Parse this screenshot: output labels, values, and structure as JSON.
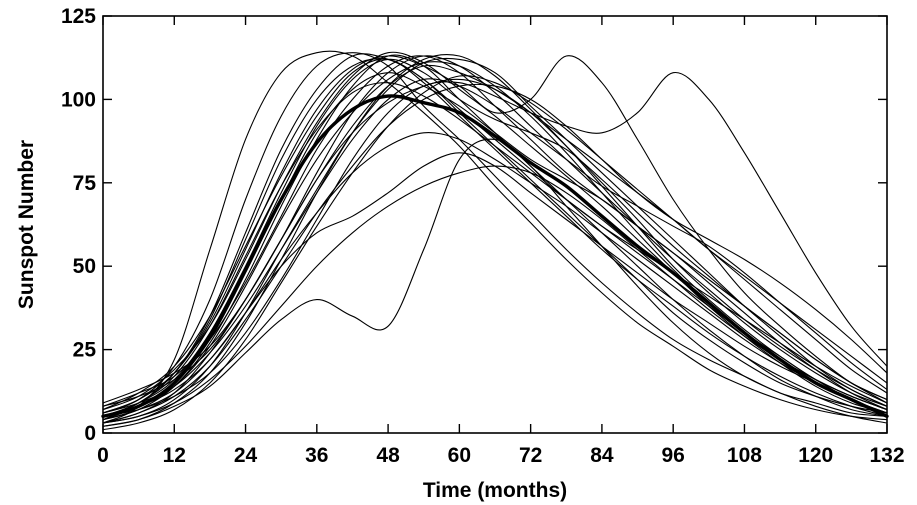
{
  "chart_data": {
    "type": "line",
    "xlabel": "Time (months)",
    "ylabel": "Sunspot Number",
    "xlim": [
      0,
      132
    ],
    "ylim": [
      0,
      125
    ],
    "xticks": [
      0,
      12,
      24,
      36,
      48,
      60,
      72,
      84,
      96,
      108,
      120,
      132
    ],
    "yticks": [
      0,
      25,
      50,
      75,
      100,
      125
    ],
    "grid": false,
    "legend": "none",
    "mean_series": {
      "style": "thick",
      "x": [
        0,
        6,
        12,
        18,
        24,
        30,
        36,
        42,
        48,
        54,
        60,
        66,
        72,
        78,
        84,
        90,
        96,
        102,
        108,
        114,
        120,
        126,
        132
      ],
      "y": [
        5,
        8,
        15,
        29,
        49,
        70,
        87,
        97,
        101,
        99,
        96,
        89,
        81,
        74,
        65,
        56,
        48,
        39,
        30,
        22,
        15,
        10,
        5
      ]
    },
    "series": [
      {
        "x": [
          0,
          6,
          12,
          18,
          24,
          30,
          36,
          42,
          48,
          54,
          60,
          66,
          72,
          78,
          84,
          90,
          96,
          102,
          108,
          114,
          120,
          126,
          132
        ],
        "y": [
          3,
          8,
          22,
          55,
          88,
          108,
          114,
          113,
          105,
          96,
          86,
          74,
          63,
          52,
          42,
          33,
          26,
          19,
          14,
          10,
          7,
          5,
          4
        ]
      },
      {
        "x": [
          0,
          6,
          12,
          18,
          24,
          30,
          36,
          42,
          48,
          54,
          60,
          66,
          72,
          78,
          84,
          90,
          96,
          102,
          108,
          114,
          120,
          126,
          132
        ],
        "y": [
          6,
          10,
          20,
          40,
          70,
          95,
          110,
          114,
          110,
          98,
          88,
          77,
          66,
          55,
          45,
          36,
          28,
          22,
          17,
          12,
          9,
          6,
          5
        ]
      },
      {
        "x": [
          0,
          6,
          12,
          18,
          24,
          30,
          36,
          42,
          48,
          54,
          60,
          66,
          72,
          78,
          84,
          90,
          96,
          102,
          108,
          114,
          120,
          126,
          132
        ],
        "y": [
          5,
          9,
          18,
          35,
          60,
          85,
          103,
          113,
          112,
          106,
          96,
          86,
          76,
          66,
          56,
          46,
          36,
          28,
          21,
          15,
          11,
          8,
          6
        ]
      },
      {
        "x": [
          0,
          6,
          12,
          18,
          24,
          30,
          36,
          42,
          48,
          54,
          60,
          66,
          72,
          78,
          84,
          90,
          96,
          102,
          108,
          114,
          120,
          126,
          132
        ],
        "y": [
          4,
          7,
          14,
          27,
          46,
          68,
          88,
          104,
          113,
          110,
          100,
          90,
          80,
          70,
          60,
          50,
          40,
          31,
          23,
          16,
          11,
          7,
          5
        ]
      },
      {
        "x": [
          0,
          6,
          12,
          18,
          24,
          30,
          36,
          42,
          48,
          54,
          60,
          66,
          72,
          78,
          84,
          90,
          96,
          102,
          108,
          114,
          120,
          126,
          132
        ],
        "y": [
          7,
          11,
          19,
          32,
          52,
          74,
          93,
          107,
          114,
          111,
          103,
          95,
          86,
          77,
          68,
          58,
          48,
          38,
          29,
          21,
          14,
          9,
          6
        ]
      },
      {
        "x": [
          0,
          6,
          12,
          18,
          24,
          30,
          36,
          42,
          48,
          54,
          60,
          66,
          72,
          78,
          84,
          90,
          96,
          102,
          108,
          114,
          120,
          126,
          132
        ],
        "y": [
          3,
          5,
          10,
          20,
          36,
          55,
          73,
          90,
          103,
          111,
          112,
          108,
          98,
          88,
          78,
          68,
          58,
          48,
          38,
          29,
          20,
          13,
          8
        ]
      },
      {
        "x": [
          0,
          6,
          12,
          18,
          24,
          30,
          36,
          42,
          48,
          54,
          60,
          66,
          72,
          78,
          84,
          90,
          96,
          102,
          108,
          114,
          120,
          126,
          132
        ],
        "y": [
          8,
          12,
          17,
          28,
          45,
          65,
          85,
          100,
          110,
          113,
          108,
          98,
          88,
          78,
          70,
          62,
          54,
          46,
          38,
          30,
          22,
          15,
          10
        ]
      },
      {
        "x": [
          0,
          6,
          12,
          18,
          24,
          30,
          36,
          42,
          48,
          54,
          60,
          66,
          72,
          78,
          84,
          90,
          96,
          102,
          108,
          114,
          120,
          126,
          132
        ],
        "y": [
          2,
          4,
          9,
          18,
          33,
          52,
          72,
          90,
          104,
          112,
          113,
          107,
          97,
          86,
          74,
          62,
          50,
          40,
          31,
          23,
          16,
          10,
          6
        ]
      },
      {
        "x": [
          0,
          6,
          12,
          18,
          24,
          30,
          36,
          42,
          48,
          54,
          60,
          66,
          72,
          78,
          84,
          90,
          96,
          102,
          108,
          114,
          120,
          126,
          132
        ],
        "y": [
          5,
          9,
          16,
          30,
          50,
          72,
          92,
          106,
          112,
          108,
          100,
          94,
          90,
          85,
          76,
          66,
          56,
          47,
          38,
          30,
          22,
          15,
          9
        ]
      },
      {
        "x": [
          0,
          6,
          12,
          18,
          24,
          30,
          36,
          42,
          48,
          54,
          60,
          66,
          72,
          78,
          84,
          90,
          96,
          102,
          108,
          114,
          120,
          126,
          132
        ],
        "y": [
          6,
          10,
          18,
          33,
          55,
          78,
          97,
          109,
          113,
          110,
          104,
          96,
          100,
          113,
          105,
          88,
          70,
          55,
          42,
          32,
          23,
          15,
          10
        ]
      },
      {
        "x": [
          0,
          6,
          12,
          18,
          24,
          30,
          36,
          42,
          48,
          54,
          60,
          66,
          72,
          78,
          84,
          90,
          96,
          102,
          108,
          114,
          120,
          126,
          132
        ],
        "y": [
          4,
          8,
          15,
          28,
          48,
          70,
          90,
          103,
          108,
          104,
          98,
          90,
          82,
          76,
          70,
          62,
          54,
          45,
          36,
          27,
          19,
          12,
          7
        ]
      },
      {
        "x": [
          0,
          6,
          12,
          18,
          24,
          30,
          36,
          42,
          48,
          54,
          60,
          66,
          72,
          78,
          84,
          90,
          96,
          102,
          108,
          114,
          120,
          126,
          132
        ],
        "y": [
          3,
          6,
          12,
          24,
          40,
          58,
          76,
          92,
          104,
          110,
          108,
          103,
          96,
          88,
          80,
          72,
          64,
          55,
          46,
          37,
          28,
          19,
          12
        ]
      },
      {
        "x": [
          0,
          6,
          12,
          18,
          24,
          30,
          36,
          42,
          48,
          54,
          60,
          66,
          72,
          78,
          84,
          90,
          96,
          102,
          108,
          114,
          120,
          126,
          132
        ],
        "y": [
          5,
          8,
          13,
          22,
          36,
          52,
          66,
          78,
          86,
          90,
          88,
          82,
          75,
          68,
          60,
          52,
          44,
          36,
          28,
          21,
          15,
          10,
          6
        ]
      },
      {
        "x": [
          0,
          6,
          12,
          18,
          24,
          30,
          36,
          42,
          48,
          54,
          60,
          66,
          72,
          78,
          84,
          90,
          96,
          102,
          108,
          114,
          120,
          126,
          132
        ],
        "y": [
          9,
          13,
          18,
          26,
          40,
          58,
          78,
          96,
          108,
          113,
          110,
          102,
          92,
          82,
          72,
          62,
          52,
          43,
          34,
          26,
          19,
          13,
          8
        ]
      },
      {
        "x": [
          0,
          6,
          12,
          18,
          24,
          30,
          36,
          42,
          48,
          54,
          60,
          66,
          72,
          78,
          84,
          90,
          96,
          102,
          108,
          114,
          120,
          126,
          132
        ],
        "y": [
          4,
          9,
          17,
          32,
          53,
          74,
          91,
          102,
          105,
          101,
          94,
          86,
          78,
          70,
          62,
          54,
          46,
          38,
          30,
          23,
          16,
          11,
          7
        ]
      },
      {
        "x": [
          0,
          6,
          12,
          18,
          24,
          30,
          36,
          42,
          48,
          54,
          60,
          66,
          72,
          78,
          84,
          90,
          96,
          102,
          108,
          114,
          120,
          126,
          132
        ],
        "y": [
          6,
          9,
          14,
          24,
          38,
          55,
          72,
          88,
          100,
          106,
          104,
          98,
          90,
          82,
          74,
          68,
          62,
          56,
          48,
          39,
          30,
          21,
          13
        ]
      },
      {
        "x": [
          0,
          6,
          12,
          18,
          24,
          30,
          36,
          42,
          48,
          54,
          60,
          66,
          72,
          78,
          84,
          90,
          96,
          102,
          108,
          114,
          120,
          126,
          132
        ],
        "y": [
          1,
          3,
          7,
          15,
          28,
          45,
          62,
          78,
          92,
          102,
          107,
          105,
          99,
          91,
          82,
          73,
          64,
          55,
          47,
          39,
          31,
          23,
          15
        ]
      },
      {
        "x": [
          0,
          6,
          12,
          18,
          24,
          30,
          36,
          42,
          48,
          54,
          60,
          66,
          72,
          78,
          84,
          90,
          96,
          102,
          108,
          114,
          120,
          126,
          132
        ],
        "y": [
          7,
          12,
          20,
          35,
          56,
          77,
          95,
          108,
          112,
          105,
          95,
          85,
          75,
          65,
          55,
          46,
          38,
          30,
          23,
          17,
          12,
          8,
          5
        ]
      },
      {
        "x": [
          0,
          6,
          12,
          18,
          24,
          30,
          36,
          42,
          48,
          54,
          60,
          66,
          72,
          78,
          84,
          90,
          96,
          102,
          108,
          114,
          120,
          126,
          132
        ],
        "y": [
          3,
          6,
          11,
          20,
          34,
          50,
          66,
          80,
          92,
          100,
          104,
          104,
          100,
          92,
          82,
          72,
          64,
          58,
          52,
          45,
          37,
          28,
          18
        ]
      },
      {
        "x": [
          0,
          6,
          12,
          18,
          24,
          30,
          36,
          42,
          48,
          54,
          60,
          66,
          72,
          78,
          84,
          90,
          96,
          102,
          108,
          114,
          120,
          126,
          132
        ],
        "y": [
          5,
          7,
          11,
          18,
          30,
          46,
          64,
          82,
          96,
          104,
          105,
          101,
          96,
          92,
          90,
          96,
          108,
          100,
          84,
          66,
          48,
          32,
          20
        ]
      },
      {
        "x": [
          0,
          6,
          12,
          18,
          24,
          30,
          36,
          42,
          48,
          54,
          60,
          66,
          72,
          78,
          84,
          90,
          96,
          102,
          108,
          114,
          120,
          126,
          132
        ],
        "y": [
          2,
          4,
          8,
          14,
          24,
          34,
          40,
          35,
          32,
          55,
          82,
          88,
          80,
          68,
          56,
          44,
          33,
          24,
          17,
          12,
          8,
          5,
          3
        ]
      },
      {
        "x": [
          0,
          6,
          12,
          18,
          24,
          30,
          36,
          42,
          48,
          54,
          60,
          66,
          72,
          78,
          84,
          90,
          96,
          102,
          108,
          114,
          120,
          126,
          132
        ],
        "y": [
          4,
          7,
          12,
          22,
          36,
          50,
          60,
          65,
          72,
          80,
          84,
          80,
          72,
          64,
          56,
          48,
          40,
          33,
          26,
          20,
          15,
          10,
          6
        ]
      },
      {
        "x": [
          0,
          6,
          12,
          18,
          24,
          30,
          36,
          42,
          48,
          54,
          60,
          66,
          72,
          78,
          84,
          90,
          96,
          102,
          108,
          114,
          120,
          126,
          132
        ],
        "y": [
          8,
          11,
          16,
          25,
          40,
          58,
          76,
          90,
          99,
          104,
          106,
          103,
          96,
          86,
          75,
          64,
          52,
          42,
          33,
          25,
          18,
          12,
          8
        ]
      },
      {
        "x": [
          0,
          6,
          12,
          18,
          24,
          30,
          36,
          42,
          48,
          54,
          60,
          66,
          72,
          78,
          84,
          90,
          96,
          102,
          108,
          114,
          120,
          126,
          132
        ],
        "y": [
          3,
          5,
          9,
          16,
          26,
          38,
          50,
          60,
          68,
          74,
          78,
          80,
          78,
          72,
          64,
          55,
          46,
          37,
          29,
          22,
          16,
          11,
          7
        ]
      },
      {
        "x": [
          0,
          6,
          12,
          18,
          24,
          30,
          36,
          42,
          48,
          54,
          60,
          66,
          72,
          78,
          84,
          90,
          96,
          102,
          108,
          114,
          120,
          126,
          132
        ],
        "y": [
          6,
          10,
          18,
          34,
          58,
          82,
          100,
          110,
          112,
          106,
          97,
          88,
          79,
          70,
          62,
          55,
          48,
          41,
          34,
          27,
          20,
          14,
          9
        ]
      },
      {
        "x": [
          0,
          6,
          12,
          18,
          24,
          30,
          36,
          42,
          48,
          54,
          60,
          66,
          72,
          78,
          84,
          90,
          96,
          102,
          108,
          114,
          120,
          126,
          132
        ],
        "y": [
          5,
          8,
          14,
          26,
          44,
          64,
          82,
          96,
          106,
          111,
          110,
          104,
          95,
          84,
          72,
          60,
          49,
          39,
          30,
          22,
          16,
          11,
          7
        ]
      }
    ]
  }
}
